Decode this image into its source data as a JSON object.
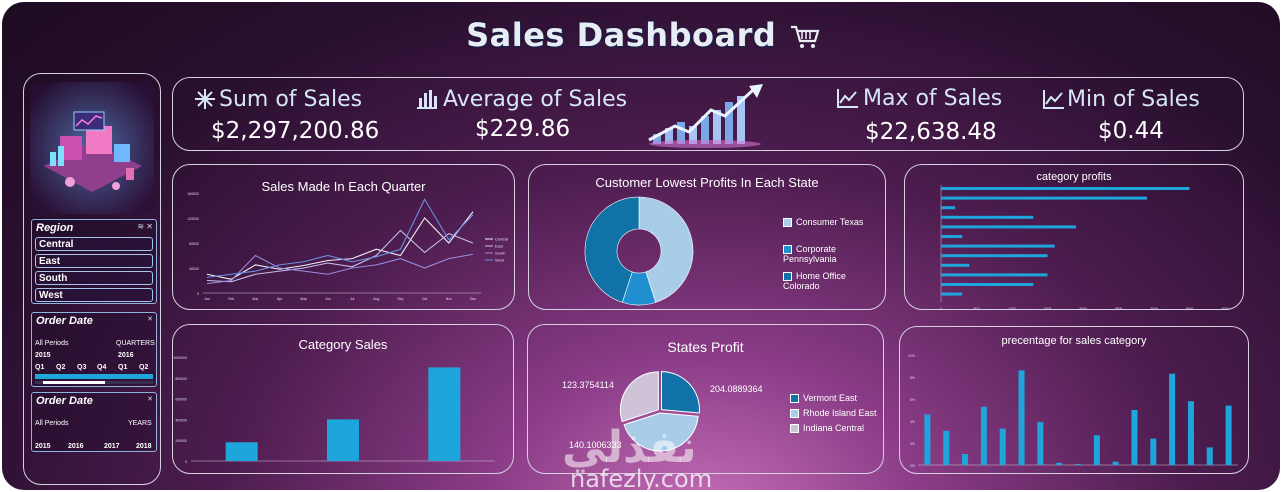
{
  "dashboard": {
    "title": "Sales Dashboard"
  },
  "kpis": [
    {
      "label": "Sum of Sales",
      "value": "$2,297,200.86",
      "icon": "asterisk-icon"
    },
    {
      "label": "Average of Sales",
      "value": "$229.86",
      "icon": "bar-chart-icon"
    },
    {
      "label": "Max of Sales",
      "value": "$22,638.48",
      "icon": "line-chart-icon"
    },
    {
      "label": "Min of Sales",
      "value": "$0.44",
      "icon": "line-chart-icon"
    }
  ],
  "slicers": {
    "region": {
      "title": "Region",
      "items": [
        "Central",
        "East",
        "South",
        "West"
      ]
    },
    "order_date_quarters": {
      "title": "Order Date",
      "all_periods": "All Periods",
      "level": "QUARTERS",
      "years": [
        "2015",
        "2016"
      ],
      "quarters": [
        "Q1",
        "Q2",
        "Q3",
        "Q4",
        "Q1",
        "Q2"
      ]
    },
    "order_date_years": {
      "title": "Order Date",
      "all_periods": "All Periods",
      "level": "YEARS",
      "years": [
        "2015",
        "2016",
        "2017",
        "2018"
      ]
    }
  },
  "charts": {
    "quarter_title": "Sales Made In Each Quarter",
    "lowest_profit_title": "Customer Lowest Profits In Each State",
    "lowest_profit_legend": [
      "Consumer Texas",
      "Corporate Pennsylvania",
      "Home Office Colorado"
    ],
    "category_profits_title": "category profits",
    "category_sales_title": "Category Sales",
    "states_profit_title": "States Profit",
    "states_profit_labels": [
      "123.3754114",
      "204.0889364",
      "140.1006333"
    ],
    "states_profit_legend": [
      "Vermont East",
      "Rhode Island East",
      "Indiana Central"
    ],
    "pct_title": "precentage for sales category"
  },
  "chart_data": [
    {
      "type": "line",
      "title": "Sales Made In Each Quarter",
      "x": [
        "Jan",
        "Feb",
        "Mar",
        "Apr",
        "May",
        "Jun",
        "Jul",
        "Aug",
        "Sep",
        "Oct",
        "Nov",
        "Dec"
      ],
      "series": [
        {
          "name": "Central",
          "values": [
            30000,
            22000,
            45000,
            38000,
            44000,
            52000,
            55000,
            70000,
            60000,
            120000,
            80000,
            130000
          ]
        },
        {
          "name": "East",
          "values": [
            20000,
            18000,
            30000,
            35000,
            40000,
            48000,
            42000,
            60000,
            100000,
            65000,
            95000,
            80000
          ]
        },
        {
          "name": "South",
          "values": [
            15000,
            20000,
            60000,
            40000,
            35000,
            30000,
            40000,
            45000,
            55000,
            40000,
            55000,
            62000
          ]
        },
        {
          "name": "West",
          "values": [
            25000,
            30000,
            35000,
            45000,
            50000,
            60000,
            50000,
            58000,
            70000,
            150000,
            85000,
            125000
          ]
        }
      ],
      "ylim": [
        0,
        160000
      ]
    },
    {
      "type": "pie",
      "title": "Customer Lowest Profits In Each State",
      "labels": [
        "Consumer Texas",
        "Corporate Pennsylvania",
        "Home Office Colorado"
      ],
      "values": [
        45,
        10,
        45
      ],
      "colors": [
        "#a9cde8",
        "#1f8fd0",
        "#1172a8"
      ]
    },
    {
      "type": "bar",
      "title": "category profits",
      "orientation": "horizontal",
      "values": [
        3500,
        2900,
        200,
        1300,
        1900,
        300,
        1600,
        1500,
        400,
        1500,
        1300,
        300
      ],
      "xlim": [
        0,
        4000
      ]
    },
    {
      "type": "bar",
      "title": "Category Sales",
      "values": [
        180000,
        400000,
        900000
      ],
      "ylim": [
        0,
        1000000
      ]
    },
    {
      "type": "pie",
      "title": "States Profit",
      "labels": [
        "Vermont East",
        "Rhode Island East",
        "Indiana Central"
      ],
      "values": [
        123.3754114,
        204.0889364,
        140.1006333
      ],
      "colors": [
        "#1172a8",
        "#a9cde8",
        "#cfc3d8"
      ]
    },
    {
      "type": "bar",
      "title": "precentage for sales category",
      "values": [
        4.6,
        3.1,
        1.0,
        5.3,
        3.3,
        8.6,
        3.9,
        0.2,
        0.1,
        2.7,
        0.3,
        5.0,
        2.4,
        8.3,
        5.8,
        1.6,
        5.4
      ],
      "ylim": [
        0,
        10
      ]
    }
  ],
  "colors": {
    "accent": "#1ea6dc",
    "panel_border": "#d6d0e0",
    "line_colors": [
      "#f4f0f8",
      "#c7c0e6",
      "#9a8de0",
      "#6a8fe0"
    ]
  },
  "watermark": {
    "text": "nafezly.com",
    "arabic": "نفذلي"
  }
}
